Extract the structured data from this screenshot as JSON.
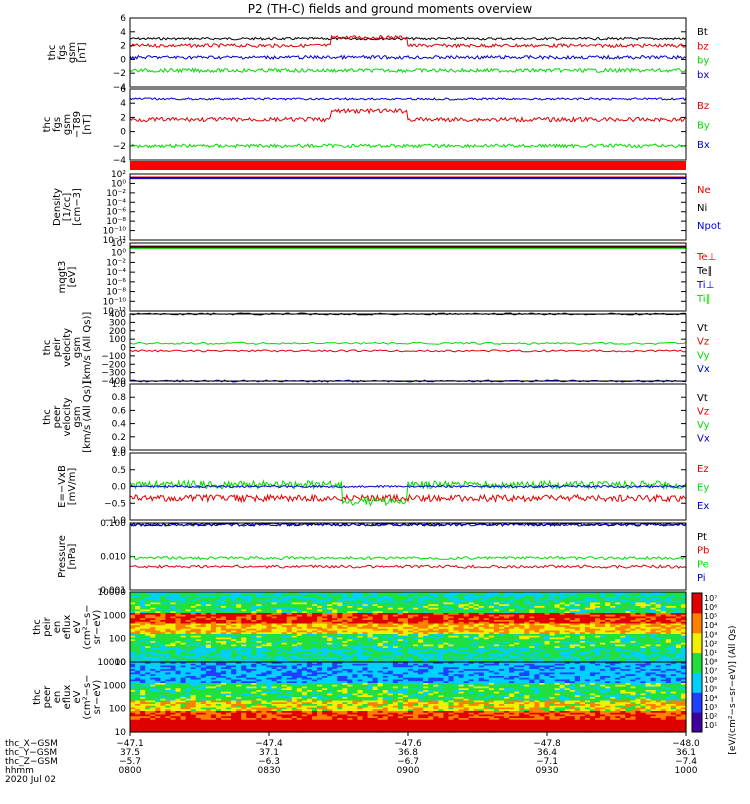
{
  "title": "P2 (TH-C) fields and ground moments overview",
  "colors": {
    "black": "#000000",
    "red": "#e00000",
    "green": "#00dd00",
    "blue": "#0000d0"
  },
  "chart_data": [
    {
      "type": "line",
      "panel": "fgs_gsm",
      "ylabel": [
        "thc",
        "fgs",
        "gsm",
        "[nT]"
      ],
      "yticks": [
        "6",
        "4",
        "2",
        "0",
        "−2",
        "−4"
      ],
      "series": [
        {
          "name": "Bt",
          "color": "#000000",
          "level": 3.0,
          "noise": 0.35
        },
        {
          "name": "bz",
          "color": "#e00000",
          "level": 2.0,
          "noise": 0.5,
          "feature": "rise_0845_0900"
        },
        {
          "name": "by",
          "color": "#00dd00",
          "level": -1.6,
          "noise": 0.55
        },
        {
          "name": "bx",
          "color": "#0000d0",
          "level": 0.3,
          "noise": 0.5
        }
      ]
    },
    {
      "type": "line",
      "panel": "fgs_gsm_t89",
      "ylabel": [
        "thc",
        "fgs",
        "gsm",
        "−T89",
        "[nT]"
      ],
      "yticks": [
        "6",
        "4",
        "2",
        "0",
        "−2",
        "−4"
      ],
      "series": [
        {
          "name": "Bz",
          "color": "#e00000",
          "level": 1.7,
          "noise": 0.6,
          "feature": "rise_0845_0900"
        },
        {
          "name": "By",
          "color": "#00dd00",
          "level": -2.0,
          "noise": 0.5
        },
        {
          "name": "Bx",
          "color": "#0000d0",
          "level": 4.6,
          "noise": 0.3
        }
      ]
    },
    {
      "type": "line",
      "panel": "density",
      "ylabel": [
        "Density",
        "[1/cc]",
        "[cm−3]"
      ],
      "yticks": [
        "10²",
        "10⁰",
        "10⁻²",
        "10⁻⁴",
        "10⁻⁶",
        "10⁻⁸",
        "10⁻¹⁰",
        "10⁻¹²"
      ],
      "series": [
        {
          "name": "Ne",
          "color": "#e00000"
        },
        {
          "name": "Ni",
          "color": "#000000"
        },
        {
          "name": "Npot",
          "color": "#0000d0"
        }
      ]
    },
    {
      "type": "line",
      "panel": "temperature",
      "ylabel": [
        "mqgt3",
        "[eV]"
      ],
      "yticks": [
        "10²",
        "10⁰",
        "10⁻²",
        "10⁻⁴",
        "10⁻⁶",
        "10⁻⁸",
        "10⁻¹⁰",
        "10⁻¹²"
      ],
      "series": [
        {
          "name": "Te⊥",
          "color": "#e00000"
        },
        {
          "name": "Te∥",
          "color": "#000000"
        },
        {
          "name": "Ti⊥",
          "color": "#0000d0"
        },
        {
          "name": "Ti∥",
          "color": "#00dd00"
        }
      ]
    },
    {
      "type": "line",
      "panel": "peir_velocity",
      "ylabel": [
        "thc",
        "peir",
        "velocity",
        "gsm",
        "[km/s (All Qs)]"
      ],
      "yticks": [
        "400",
        "300",
        "200",
        "100",
        "0",
        "−100",
        "−200",
        "−300",
        "−400"
      ],
      "series": [
        {
          "name": "Vt",
          "color": "#000000",
          "level": 400
        },
        {
          "name": "Vz",
          "color": "#e00000",
          "level": -40
        },
        {
          "name": "Vy",
          "color": "#00dd00",
          "level": 50
        },
        {
          "name": "Vx",
          "color": "#0000d0",
          "level": -400
        }
      ]
    },
    {
      "type": "line",
      "panel": "peer_velocity",
      "ylabel": [
        "thc",
        "peer",
        "velocity",
        "gsm",
        "[km/s (All Qs)]"
      ],
      "yticks": [
        "1.0",
        "0.8",
        "0.6",
        "0.4",
        "0.2",
        "0.0"
      ],
      "series": [
        {
          "name": "Vt",
          "color": "#000000"
        },
        {
          "name": "Vz",
          "color": "#e00000"
        },
        {
          "name": "Vy",
          "color": "#00dd00"
        },
        {
          "name": "Vx",
          "color": "#0000d0"
        }
      ]
    },
    {
      "type": "line",
      "panel": "efield",
      "ylabel": [
        "E=−VxB",
        "[mV/m]"
      ],
      "yticks": [
        "1.0",
        "0.5",
        "0.0",
        "−0.5",
        "−1.0"
      ],
      "series": [
        {
          "name": "Ez",
          "color": "#e00000",
          "level": -0.35,
          "noise": 0.1
        },
        {
          "name": "Ey",
          "color": "#00dd00",
          "level": 0.05,
          "noise": 0.12,
          "feature": "dip_0850_0900"
        },
        {
          "name": "Ex",
          "color": "#0000d0",
          "level": 0.0,
          "noise": 0.03
        }
      ]
    },
    {
      "type": "line",
      "panel": "pressure",
      "ylabel": [
        "Pressure",
        "[nPa]"
      ],
      "yticks": [
        "0.100",
        "0.010",
        "0.001"
      ],
      "series": [
        {
          "name": "Pt",
          "color": "#000000",
          "level": 0.09
        },
        {
          "name": "Pb",
          "color": "#e00000",
          "level": 0.005
        },
        {
          "name": "Pe",
          "color": "#00dd00",
          "level": 0.009
        },
        {
          "name": "Pi",
          "color": "#0000d0",
          "level": 0.09
        }
      ]
    },
    {
      "type": "heatmap",
      "panel": "peir_eflux",
      "ylabel": [
        "thc",
        "peir",
        "en",
        "eflux",
        "eV",
        "(cm²−s−",
        "sr−eV)"
      ],
      "yticks": [
        "10000",
        "1000",
        "100",
        "10"
      ]
    },
    {
      "type": "heatmap",
      "panel": "peer_eflux",
      "ylabel": [
        "thc",
        "peer",
        "en",
        "eflux",
        "eV",
        "(cm²−s−",
        "sr−eV)"
      ],
      "yticks": [
        "10000",
        "1000",
        "100",
        "10"
      ]
    }
  ],
  "colorbar": {
    "ticks": [
      "10⁷",
      "10⁶",
      "10⁵",
      "10⁴",
      "10³",
      "10²",
      "10¹",
      "10⁸",
      "10⁷",
      "10⁶",
      "10⁵",
      "10⁴",
      "10³",
      "10²",
      "10¹"
    ],
    "label": "[eV/(cm²−s−sr−eV)] (All Qs)"
  },
  "xaxis": {
    "row_labels": [
      "thc_X−GSM",
      "thc_Y−GSM",
      "thc_Z−GSM",
      "hhmm",
      "2020 Jul 02"
    ],
    "ticks": [
      {
        "vals": [
          "−47.1",
          "37.5",
          "−5.7",
          "0800"
        ]
      },
      {
        "vals": [
          "−47.4",
          "37.1",
          "−6.3",
          "0830"
        ]
      },
      {
        "vals": [
          "−47.6",
          "36.8",
          "−6.7",
          "0900"
        ]
      },
      {
        "vals": [
          "−47.8",
          "36.4",
          "−7.1",
          "0930"
        ]
      },
      {
        "vals": [
          "−48.0",
          "36.1",
          "−7.4",
          "1000"
        ]
      }
    ]
  }
}
